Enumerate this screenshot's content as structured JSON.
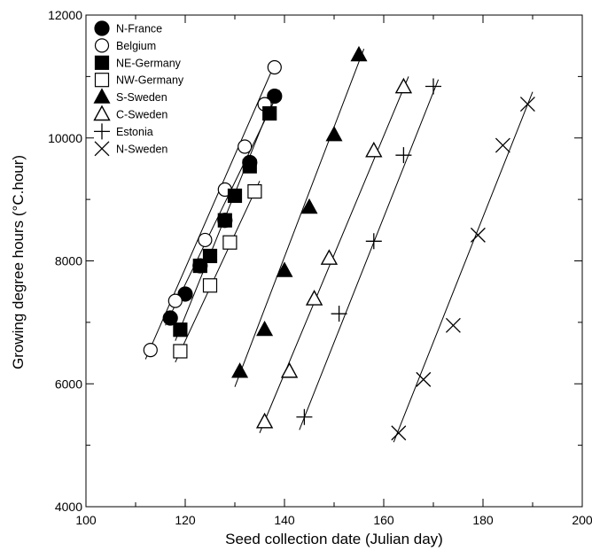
{
  "chart_data": {
    "type": "scatter",
    "title": "",
    "xlabel": "Seed collection date (Julian day)",
    "ylabel": "Growing degree hours (°C.hour)",
    "xlim": [
      100,
      200
    ],
    "ylim": [
      4000,
      12000
    ],
    "x_ticks": [
      100,
      120,
      140,
      160,
      180,
      200
    ],
    "y_ticks": [
      4000,
      6000,
      8000,
      10000,
      12000
    ],
    "grid": false,
    "legend_position": "top-left",
    "series": [
      {
        "name": "N-France",
        "marker": "filled-circle",
        "points": [
          [
            117,
            7070
          ],
          [
            120,
            7460
          ],
          [
            123,
            7920
          ],
          [
            128,
            8660
          ],
          [
            133,
            9600
          ],
          [
            138,
            10680
          ]
        ],
        "fit_line": [
          [
            116,
            6950
          ],
          [
            139,
            10780
          ]
        ]
      },
      {
        "name": "Belgium",
        "marker": "open-circle",
        "points": [
          [
            113,
            6550
          ],
          [
            118,
            7350
          ],
          [
            124,
            8340
          ],
          [
            128,
            9160
          ],
          [
            132,
            9860
          ],
          [
            136,
            10550
          ],
          [
            138,
            11150
          ]
        ],
        "fit_line": [
          [
            112,
            6400
          ],
          [
            138,
            11200
          ]
        ]
      },
      {
        "name": "NE-Germany",
        "marker": "filled-square",
        "points": [
          [
            119,
            6880
          ],
          [
            123,
            7920
          ],
          [
            125,
            8080
          ],
          [
            128,
            8660
          ],
          [
            130,
            9060
          ],
          [
            133,
            9540
          ],
          [
            137,
            10400
          ]
        ],
        "fit_line": [
          [
            118,
            6700
          ],
          [
            137,
            10500
          ]
        ]
      },
      {
        "name": "NW-Germany",
        "marker": "open-square",
        "points": [
          [
            119,
            6530
          ],
          [
            125,
            7600
          ],
          [
            129,
            8300
          ],
          [
            134,
            9130
          ]
        ],
        "fit_line": [
          [
            118,
            6350
          ],
          [
            135,
            9300
          ]
        ]
      },
      {
        "name": "S-Sweden",
        "marker": "filled-triangle",
        "points": [
          [
            131,
            6200
          ],
          [
            136,
            6880
          ],
          [
            140,
            7840
          ],
          [
            145,
            8870
          ],
          [
            150,
            10050
          ],
          [
            155,
            11350
          ]
        ],
        "fit_line": [
          [
            130,
            5950
          ],
          [
            156,
            11450
          ]
        ]
      },
      {
        "name": "C-Sweden",
        "marker": "open-triangle",
        "points": [
          [
            136,
            5380
          ],
          [
            141,
            6200
          ],
          [
            146,
            7380
          ],
          [
            149,
            8040
          ],
          [
            158,
            9790
          ],
          [
            164,
            10830
          ]
        ],
        "fit_line": [
          [
            135,
            5200
          ],
          [
            165,
            11000
          ]
        ]
      },
      {
        "name": "Estonia",
        "marker": "plus",
        "points": [
          [
            144,
            5460
          ],
          [
            151,
            7140
          ],
          [
            158,
            8320
          ],
          [
            164,
            9720
          ],
          [
            170,
            10840
          ]
        ],
        "fit_line": [
          [
            143,
            5250
          ],
          [
            171,
            10950
          ]
        ]
      },
      {
        "name": "N-Sweden",
        "marker": "cross",
        "points": [
          [
            163,
            5200
          ],
          [
            168,
            6070
          ],
          [
            174,
            6950
          ],
          [
            179,
            8420
          ],
          [
            184,
            9880
          ],
          [
            189,
            10550
          ]
        ],
        "fit_line": [
          [
            162,
            5050
          ],
          [
            190,
            10750
          ]
        ]
      }
    ]
  }
}
